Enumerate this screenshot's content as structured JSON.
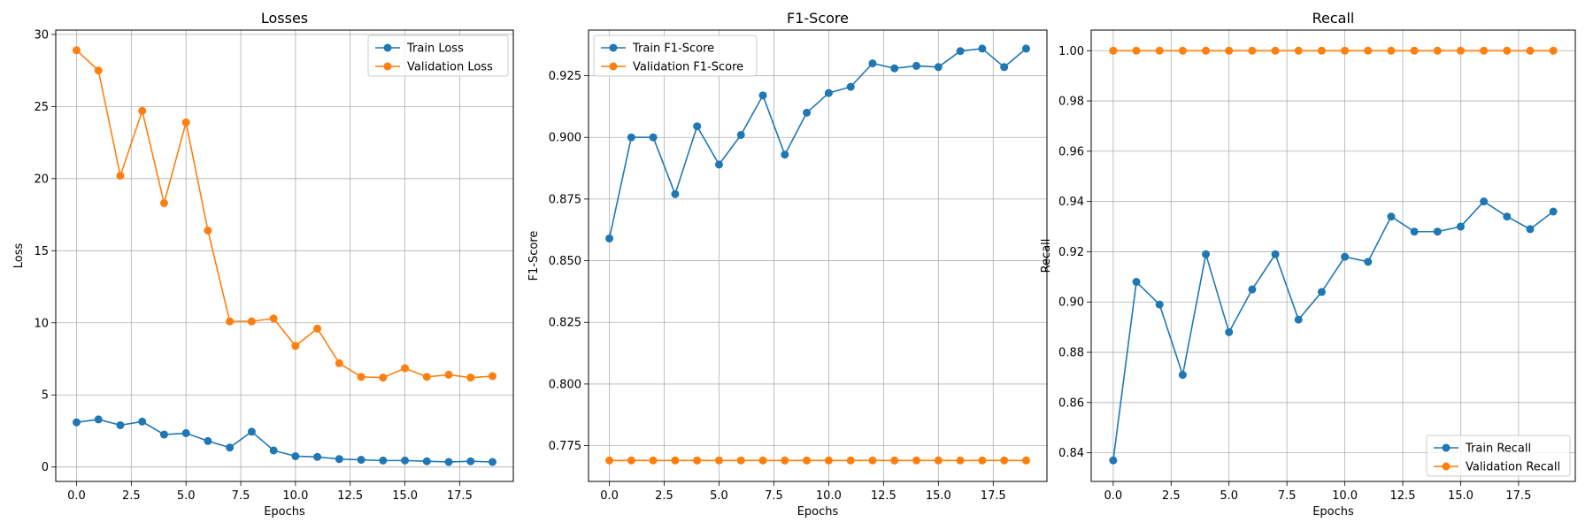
{
  "chart_data": [
    {
      "type": "line",
      "title": "Losses",
      "xlabel": "Epochs",
      "ylabel": "Loss",
      "xlim": [
        -0.95,
        19.95
      ],
      "ylim": [
        -1.0,
        30.3
      ],
      "xticks": [
        0,
        2.5,
        5,
        7.5,
        10,
        12.5,
        15,
        17.5
      ],
      "xtick_labels": [
        "0.0",
        "2.5",
        "5.0",
        "7.5",
        "10.0",
        "12.5",
        "15.0",
        "17.5"
      ],
      "yticks": [
        0,
        5,
        10,
        15,
        20,
        25,
        30
      ],
      "ytick_labels": [
        "0",
        "5",
        "10",
        "15",
        "20",
        "25",
        "30"
      ],
      "grid": true,
      "legend": "top-right",
      "x": [
        0,
        1,
        2,
        3,
        4,
        5,
        6,
        7,
        8,
        9,
        10,
        11,
        12,
        13,
        14,
        15,
        16,
        17,
        18,
        19
      ],
      "series": [
        {
          "name": "Train Loss",
          "color": "#1f77b4",
          "values": [
            3.1,
            3.3,
            2.9,
            3.15,
            2.25,
            2.35,
            1.8,
            1.35,
            2.45,
            1.15,
            0.75,
            0.7,
            0.55,
            0.5,
            0.45,
            0.45,
            0.4,
            0.35,
            0.4,
            0.35
          ]
        },
        {
          "name": "Validation Loss",
          "color": "#ff7f0e",
          "values": [
            28.9,
            27.5,
            20.2,
            24.7,
            18.3,
            23.9,
            16.4,
            10.1,
            10.1,
            10.3,
            8.4,
            9.6,
            7.2,
            6.25,
            6.2,
            6.85,
            6.25,
            6.4,
            6.2,
            6.3
          ]
        }
      ]
    },
    {
      "type": "line",
      "title": "F1-Score",
      "xlabel": "Epochs",
      "ylabel": "F1-Score",
      "xlim": [
        -0.95,
        19.95
      ],
      "ylim": [
        0.7605,
        0.9435
      ],
      "xticks": [
        0,
        2.5,
        5,
        7.5,
        10,
        12.5,
        15,
        17.5
      ],
      "xtick_labels": [
        "0.0",
        "2.5",
        "5.0",
        "7.5",
        "10.0",
        "12.5",
        "15.0",
        "17.5"
      ],
      "yticks": [
        0.775,
        0.8,
        0.825,
        0.85,
        0.875,
        0.9,
        0.925
      ],
      "ytick_labels": [
        "0.775",
        "0.800",
        "0.825",
        "0.850",
        "0.875",
        "0.900",
        "0.925"
      ],
      "grid": true,
      "legend": "top-left",
      "x": [
        0,
        1,
        2,
        3,
        4,
        5,
        6,
        7,
        8,
        9,
        10,
        11,
        12,
        13,
        14,
        15,
        16,
        17,
        18,
        19
      ],
      "series": [
        {
          "name": "Train F1-Score",
          "color": "#1f77b4",
          "values": [
            0.859,
            0.9,
            0.9,
            0.877,
            0.9045,
            0.889,
            0.901,
            0.917,
            0.893,
            0.91,
            0.918,
            0.9205,
            0.93,
            0.928,
            0.929,
            0.9285,
            0.935,
            0.936,
            0.9285,
            0.936
          ]
        },
        {
          "name": "Validation F1-Score",
          "color": "#ff7f0e",
          "values": [
            0.769,
            0.769,
            0.769,
            0.769,
            0.769,
            0.769,
            0.769,
            0.769,
            0.769,
            0.769,
            0.769,
            0.769,
            0.769,
            0.769,
            0.769,
            0.769,
            0.769,
            0.769,
            0.769,
            0.769
          ]
        }
      ]
    },
    {
      "type": "line",
      "title": "Recall",
      "xlabel": "Epochs",
      "ylabel": "Recall",
      "xlim": [
        -0.95,
        19.95
      ],
      "ylim": [
        0.8286,
        1.0082
      ],
      "xticks": [
        0,
        2.5,
        5,
        7.5,
        10,
        12.5,
        15,
        17.5
      ],
      "xtick_labels": [
        "0.0",
        "2.5",
        "5.0",
        "7.5",
        "10.0",
        "12.5",
        "15.0",
        "17.5"
      ],
      "yticks": [
        0.84,
        0.86,
        0.88,
        0.9,
        0.92,
        0.94,
        0.96,
        0.98,
        1.0
      ],
      "ytick_labels": [
        "0.84",
        "0.86",
        "0.88",
        "0.90",
        "0.92",
        "0.94",
        "0.96",
        "0.98",
        "1.00"
      ],
      "grid": true,
      "legend": "bottom-right",
      "x": [
        0,
        1,
        2,
        3,
        4,
        5,
        6,
        7,
        8,
        9,
        10,
        11,
        12,
        13,
        14,
        15,
        16,
        17,
        18,
        19
      ],
      "series": [
        {
          "name": "Train Recall",
          "color": "#1f77b4",
          "values": [
            0.837,
            0.908,
            0.899,
            0.871,
            0.919,
            0.888,
            0.905,
            0.919,
            0.893,
            0.904,
            0.918,
            0.916,
            0.934,
            0.928,
            0.928,
            0.93,
            0.94,
            0.934,
            0.929,
            0.936
          ]
        },
        {
          "name": "Validation Recall",
          "color": "#ff7f0e",
          "values": [
            1.0,
            1.0,
            1.0,
            1.0,
            1.0,
            1.0,
            1.0,
            1.0,
            1.0,
            1.0,
            1.0,
            1.0,
            1.0,
            1.0,
            1.0,
            1.0,
            1.0,
            1.0,
            1.0,
            1.0
          ]
        }
      ]
    }
  ]
}
